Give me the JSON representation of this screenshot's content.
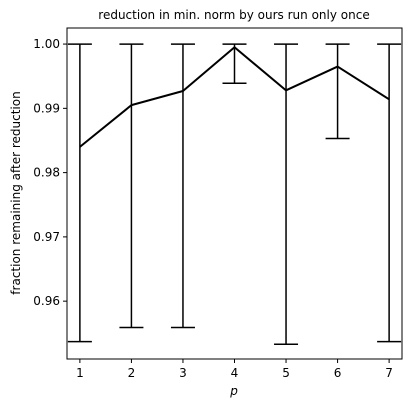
{
  "chart_data": {
    "type": "line",
    "title": "reduction in min. norm by ours run only once",
    "xlabel": "p",
    "ylabel": "fraction remaining after reduction",
    "x": [
      1,
      2,
      3,
      4,
      5,
      6,
      7
    ],
    "xticks": [
      "1",
      "2",
      "3",
      "4",
      "5",
      "6",
      "7"
    ],
    "xlim": [
      0.75,
      7.25
    ],
    "ylim": [
      0.951,
      1.0025
    ],
    "yticks": [
      "0.96",
      "0.97",
      "0.98",
      "0.99",
      "1.00"
    ],
    "ytick_values": [
      0.96,
      0.97,
      0.98,
      0.99,
      1.0
    ],
    "series": [
      {
        "values": [
          0.984,
          0.9905,
          0.9927,
          0.9995,
          0.9928,
          0.9965,
          0.9914
        ],
        "error_lower": [
          0.9537,
          0.9559,
          0.9559,
          0.9939,
          0.9533,
          0.9853,
          0.9537
        ],
        "error_upper": [
          1.0,
          1.0,
          1.0,
          1.0,
          1.0,
          1.0,
          1.0
        ],
        "color": "#000000"
      }
    ],
    "grid": false,
    "legend": "none"
  }
}
